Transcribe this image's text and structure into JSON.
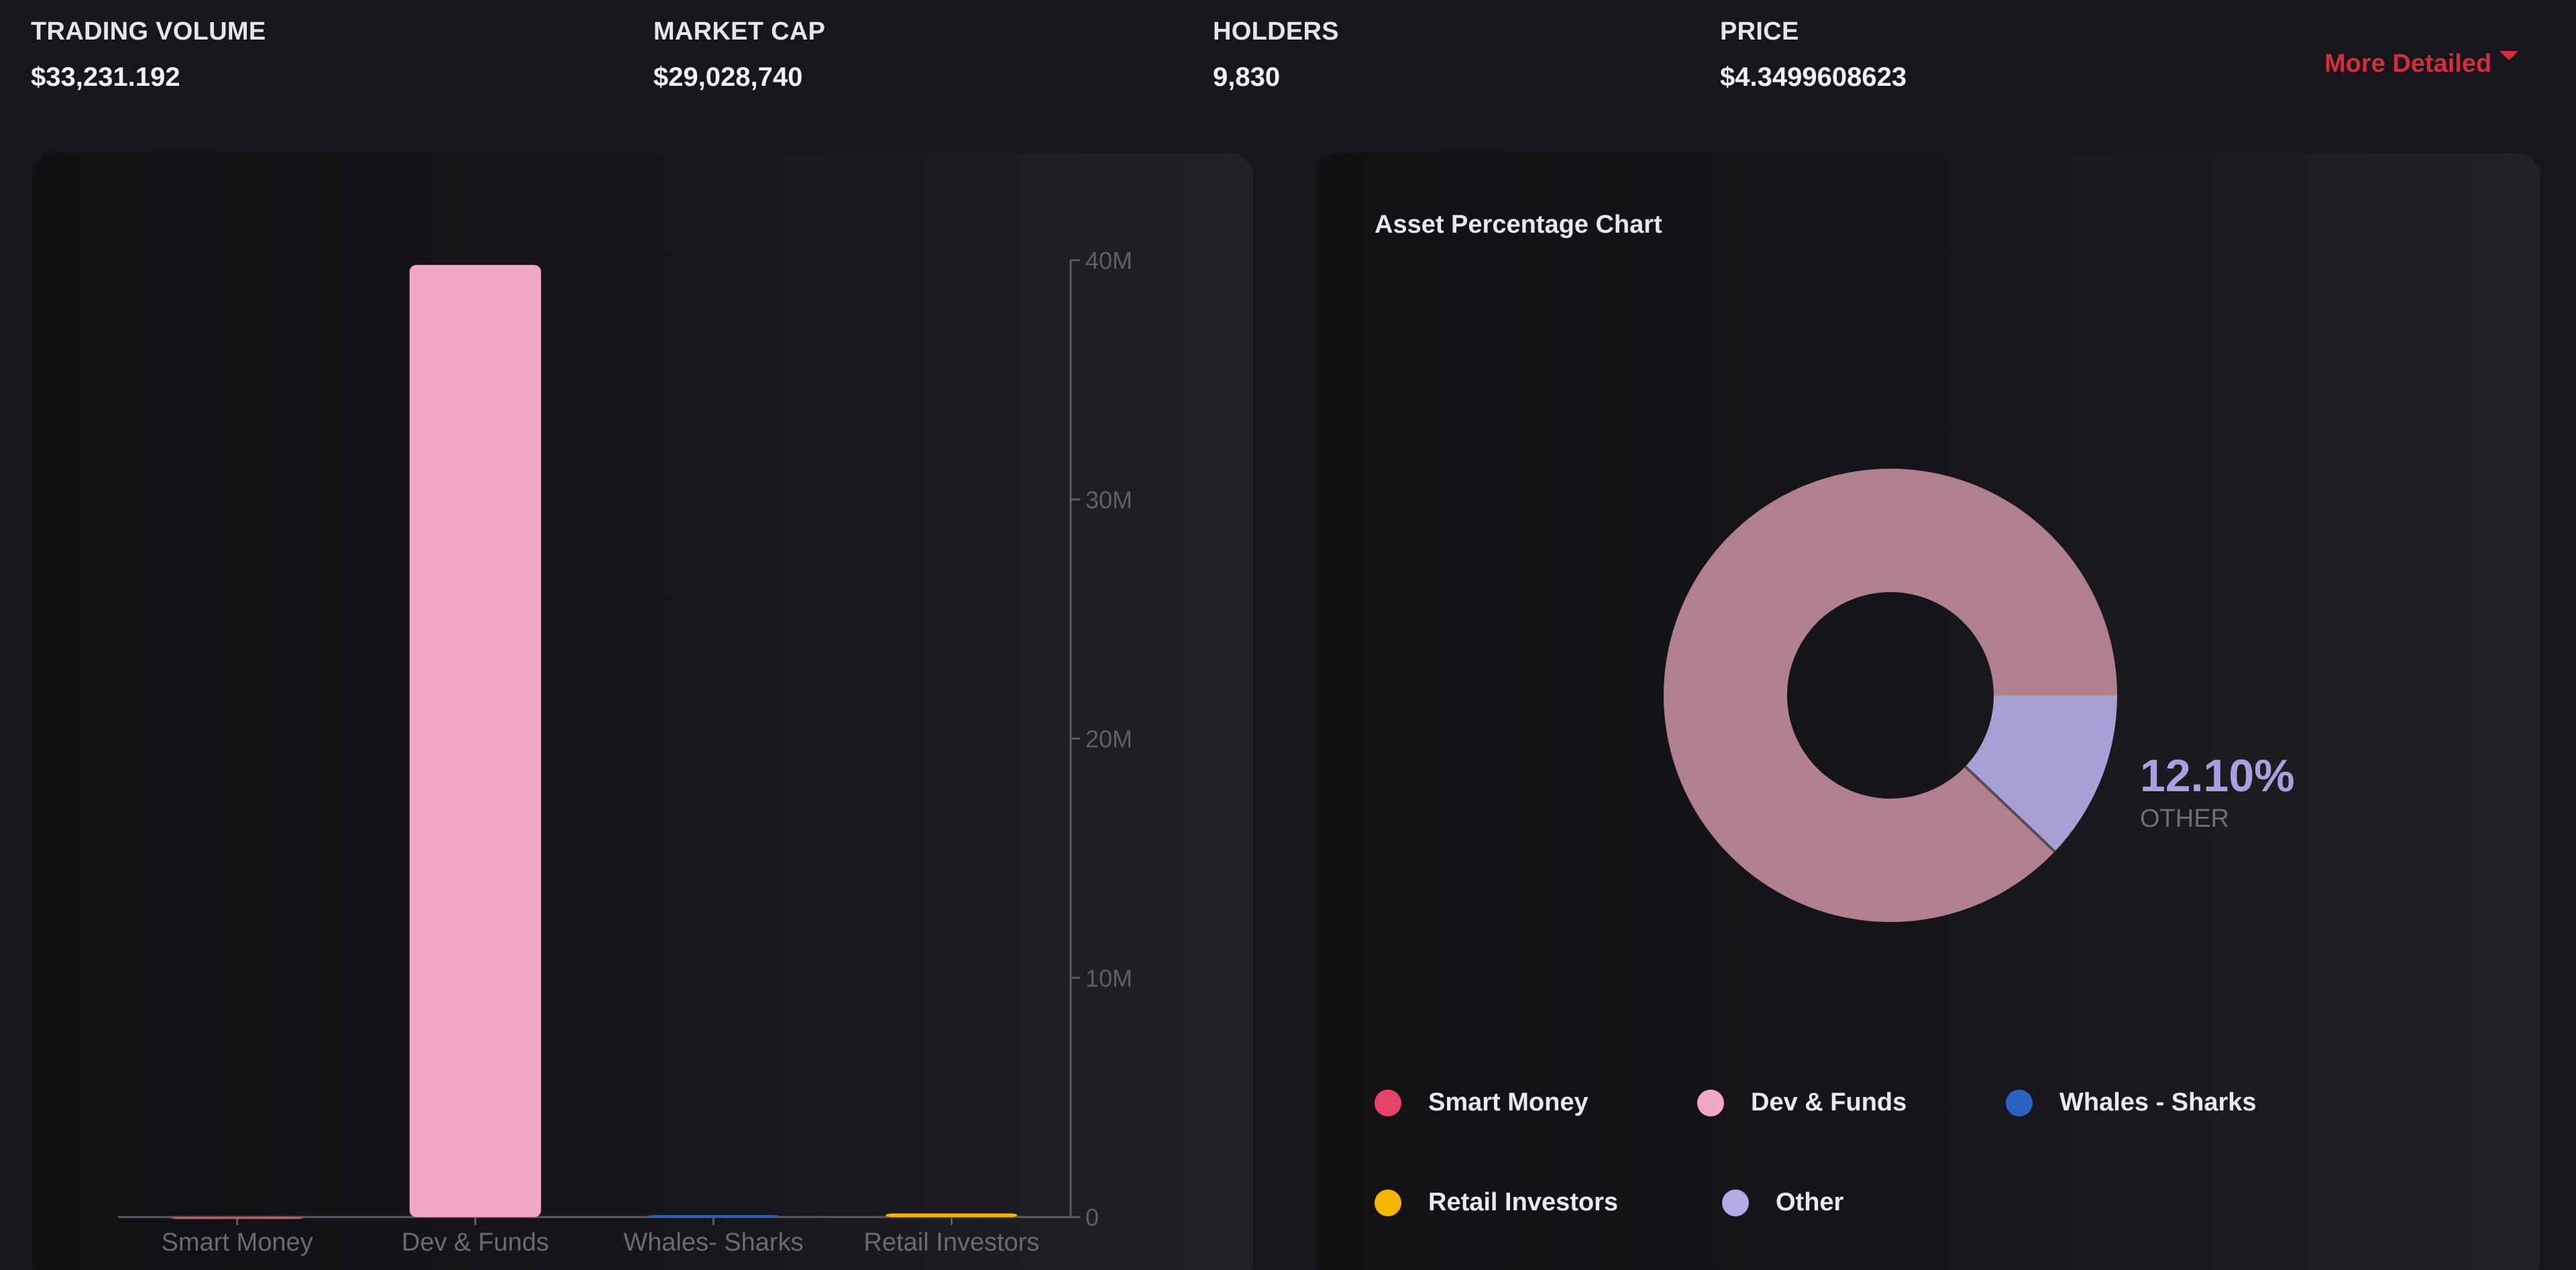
{
  "stats": [
    {
      "label": "TRADING VOLUME",
      "value": "$33,231.192"
    },
    {
      "label": "MARKET CAP",
      "value": "$29,028,740"
    },
    {
      "label": "HOLDERS",
      "value": "9,830"
    },
    {
      "label": "PRICE",
      "value": "$4.3499608623"
    }
  ],
  "more_detailed_label": "More Detailed",
  "colors": {
    "accent": "#d72b3f",
    "smart_money": "#e8436b",
    "dev_funds": "#f2a8c4",
    "whales_sharks": "#2b63c4",
    "retail_investors": "#f4b400",
    "other": "#b3abe3"
  },
  "chart_data": [
    {
      "type": "bar",
      "categories": [
        "Smart Money",
        "Dev & Funds",
        "Whales- Sharks",
        "Retail Investors"
      ],
      "values": [
        0,
        39800000,
        80000,
        150000
      ],
      "colors": [
        "#e8436b",
        "#f2a8c4",
        "#2b63c4",
        "#f4b400"
      ],
      "ylim": [
        0,
        40000000
      ],
      "yticks": [
        0,
        10000000,
        20000000,
        30000000,
        40000000
      ],
      "yticklabels": [
        "0",
        "10M",
        "20M",
        "30M",
        "40M"
      ],
      "y_axis_side": "right",
      "grid": false
    },
    {
      "type": "pie",
      "title": "Asset Percentage Chart",
      "donut": true,
      "slices": [
        {
          "label": "Dev & Funds",
          "value": 87.9,
          "color": "#b0808f"
        },
        {
          "label": "Other",
          "value": 12.1,
          "color": "#a79fd6"
        }
      ],
      "highlight": {
        "percent": "12.10%",
        "label": "OTHER"
      },
      "legend": [
        {
          "label": "Smart Money",
          "color": "#e8436b"
        },
        {
          "label": "Dev & Funds",
          "color": "#f2a8c4"
        },
        {
          "label": "Whales - Sharks",
          "color": "#2b63c4"
        },
        {
          "label": "Retail Investors",
          "color": "#f4b400"
        },
        {
          "label": "Other",
          "color": "#b3abe3"
        }
      ],
      "legend_position": "bottom"
    }
  ]
}
